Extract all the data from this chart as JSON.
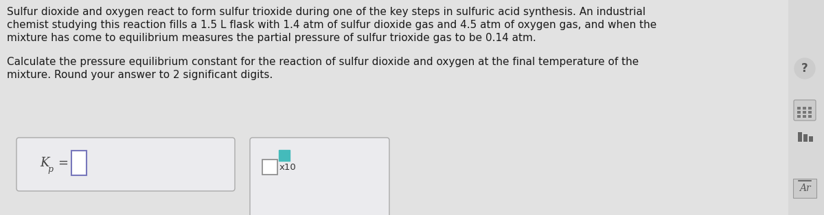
{
  "background_color": "#e2e2e2",
  "main_bg": "#e2e2e2",
  "sidebar_bg": "#d8d8d8",
  "text_color": "#1a1a1a",
  "paragraph1_line1": "Sulfur dioxide and oxygen react to form sulfur trioxide during one of the key steps in sulfuric acid synthesis. An industrial",
  "paragraph1_line2": "chemist studying this reaction fills a 1.5 L flask with 1.4 atm of sulfur dioxide gas and 4.5 atm of oxygen gas, and when the",
  "paragraph1_line3": "mixture has come to equilibrium measures the partial pressure of sulfur trioxide gas to be 0.14 atm.",
  "paragraph2_line1": "Calculate the pressure equilibrium constant for the reaction of sulfur dioxide and oxygen at the final temperature of the",
  "paragraph2_line2": "mixture. Round your answer to 2 significant digits.",
  "kp_label": "K",
  "kp_sub": "p",
  "equals": "=",
  "box1_bg": "#ebebee",
  "box1_border": "#aaaaaa",
  "input_box_bg": "#ffffff",
  "input_box_border": "#7777bb",
  "box2_bg": "#ebebee",
  "box2_border": "#aaaaaa",
  "base_input_bg": "#ffffff",
  "base_input_border": "#888888",
  "super_box_bg": "#44bbbb",
  "super_box_border": "#44bbbb",
  "x10_label": "x10",
  "font_size_body": 11.0,
  "sidebar_icon_color": "#555555",
  "sidebar_circle_color": "#cccccc"
}
